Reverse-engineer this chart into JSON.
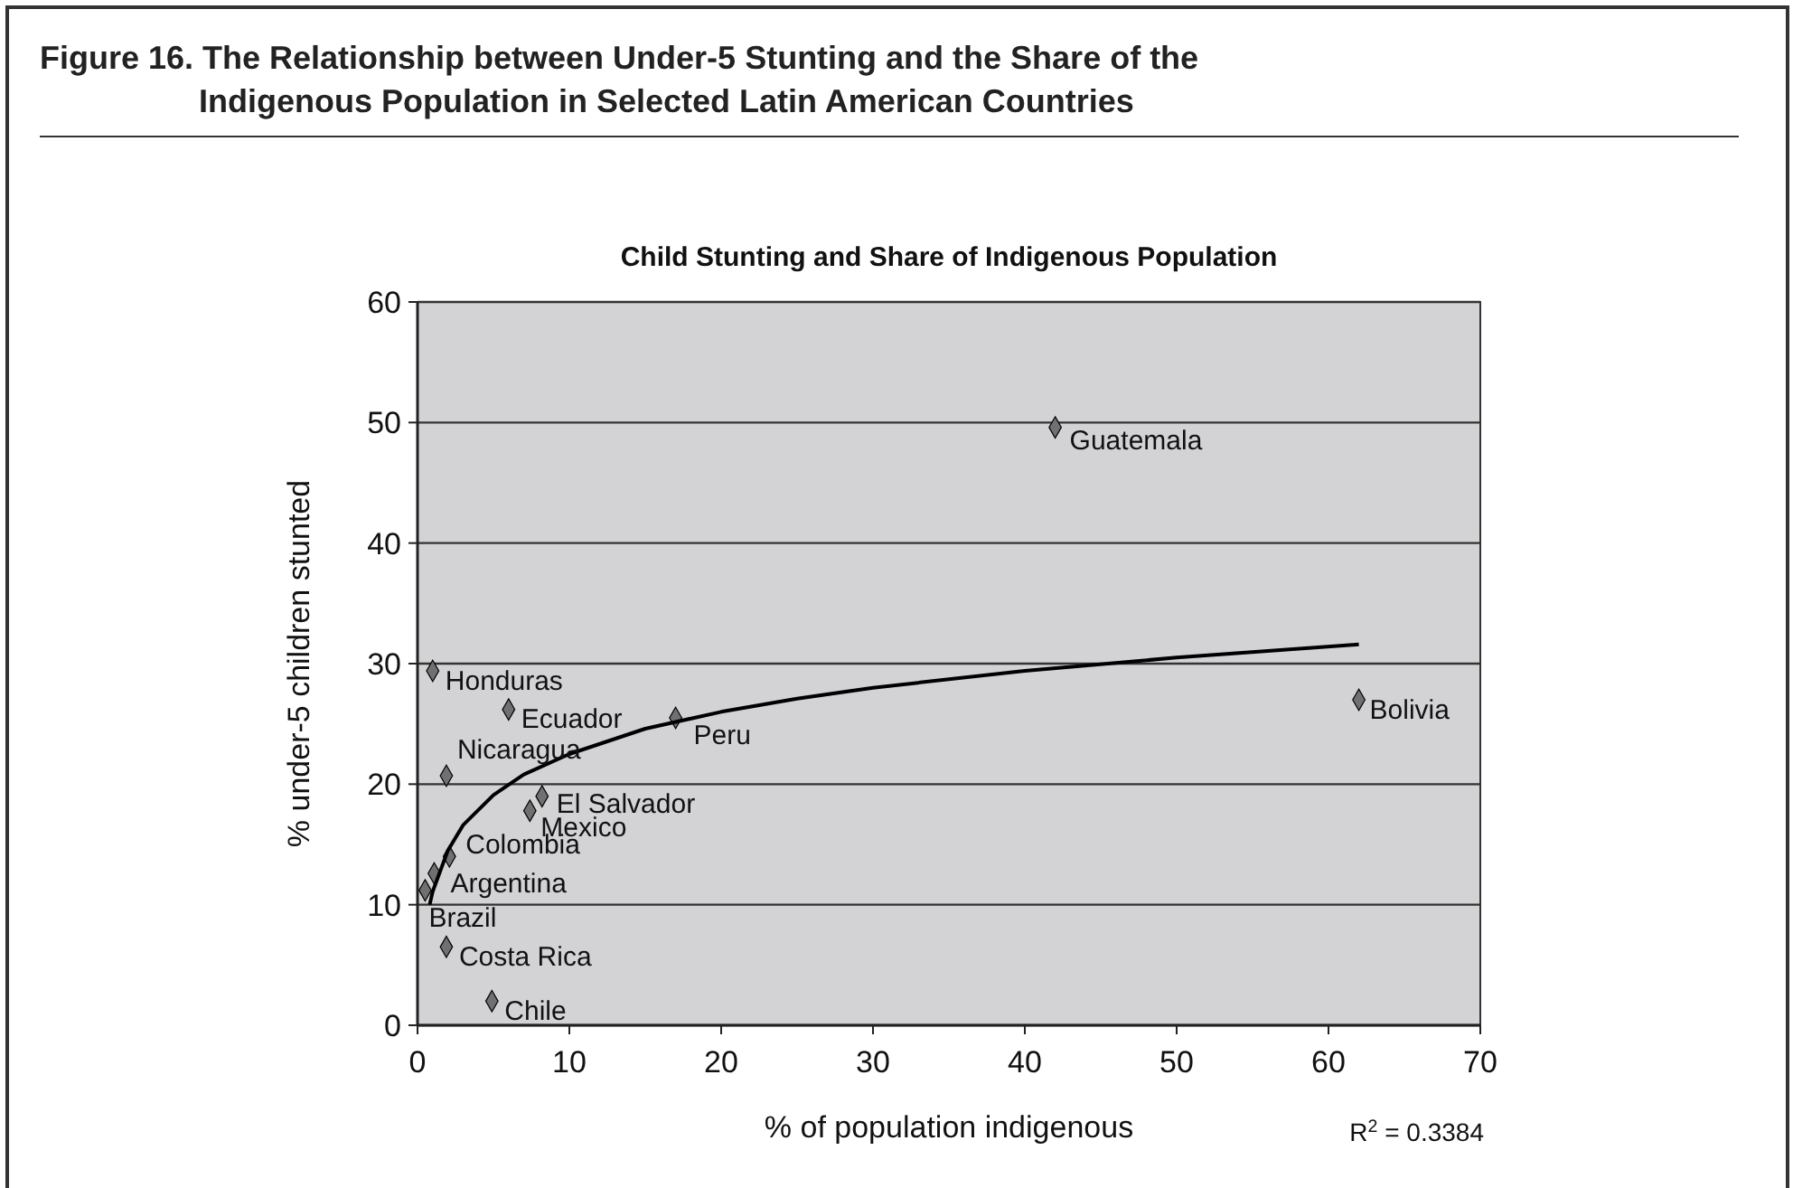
{
  "chart_data": {
    "type": "scatter",
    "title": "Figure 16.  The Relationship between Under-5 Stunting and the Share of the Indigenous Population in Selected Latin American Countries",
    "subtitle": "Child Stunting and Share of Indigenous Population",
    "xlabel": "% of population indigenous",
    "ylabel": "% under-5 children stunted",
    "xlim": [
      0,
      70
    ],
    "xticks": [
      0,
      10,
      20,
      30,
      40,
      50,
      60,
      70
    ],
    "ylim": [
      0,
      60
    ],
    "yticks": [
      0,
      10,
      20,
      30,
      40,
      50,
      60
    ],
    "grid": "y",
    "marker": "diamond",
    "series": [
      {
        "color": "#707070",
        "x": [
          42,
          1,
          6,
          17,
          62,
          1.9,
          8.2,
          7.4,
          2.1,
          1.1,
          0.5,
          1.9,
          4.9
        ],
        "values": [
          49.6,
          29.4,
          26.2,
          25.5,
          27,
          20.7,
          19,
          17.8,
          14,
          12.6,
          11.2,
          6.5,
          2
        ]
      },
      {
        "type": "line",
        "color": "#000000",
        "marker": "none",
        "line_style": "solid",
        "x": [
          0.8,
          1,
          2,
          3,
          5,
          7,
          10,
          15,
          20,
          25,
          30,
          40,
          50,
          62
        ],
        "values": [
          10,
          11.1,
          14.5,
          16.6,
          19.1,
          20.8,
          22.5,
          24.6,
          26,
          27.1,
          28,
          29.4,
          30.5,
          31.6
        ]
      }
    ],
    "annotations": [
      {
        "text": "Guatemala",
        "x": 42,
        "y": 49.6
      },
      {
        "text": "Honduras",
        "x": 1,
        "y": 29.4
      },
      {
        "text": "Ecuador",
        "x": 6,
        "y": 26.2
      },
      {
        "text": "Peru",
        "x": 17,
        "y": 25.5
      },
      {
        "text": "Bolivia",
        "x": 62,
        "y": 27
      },
      {
        "text": "Nicaragua",
        "x": 1.9,
        "y": 20.7
      },
      {
        "text": "El Salvador",
        "x": 8.2,
        "y": 19
      },
      {
        "text": "Mexico",
        "x": 7.4,
        "y": 17.8
      },
      {
        "text": "Colombia",
        "x": 2.1,
        "y": 14
      },
      {
        "text": "Argentina",
        "x": 1.1,
        "y": 12.6
      },
      {
        "text": "Brazil",
        "x": 0.5,
        "y": 11.2
      },
      {
        "text": "Costa Rica",
        "x": 1.9,
        "y": 6.5
      },
      {
        "text": "Chile",
        "x": 4.9,
        "y": 2
      },
      "R$^{2}$ = 0.3384"
    ]
  }
}
